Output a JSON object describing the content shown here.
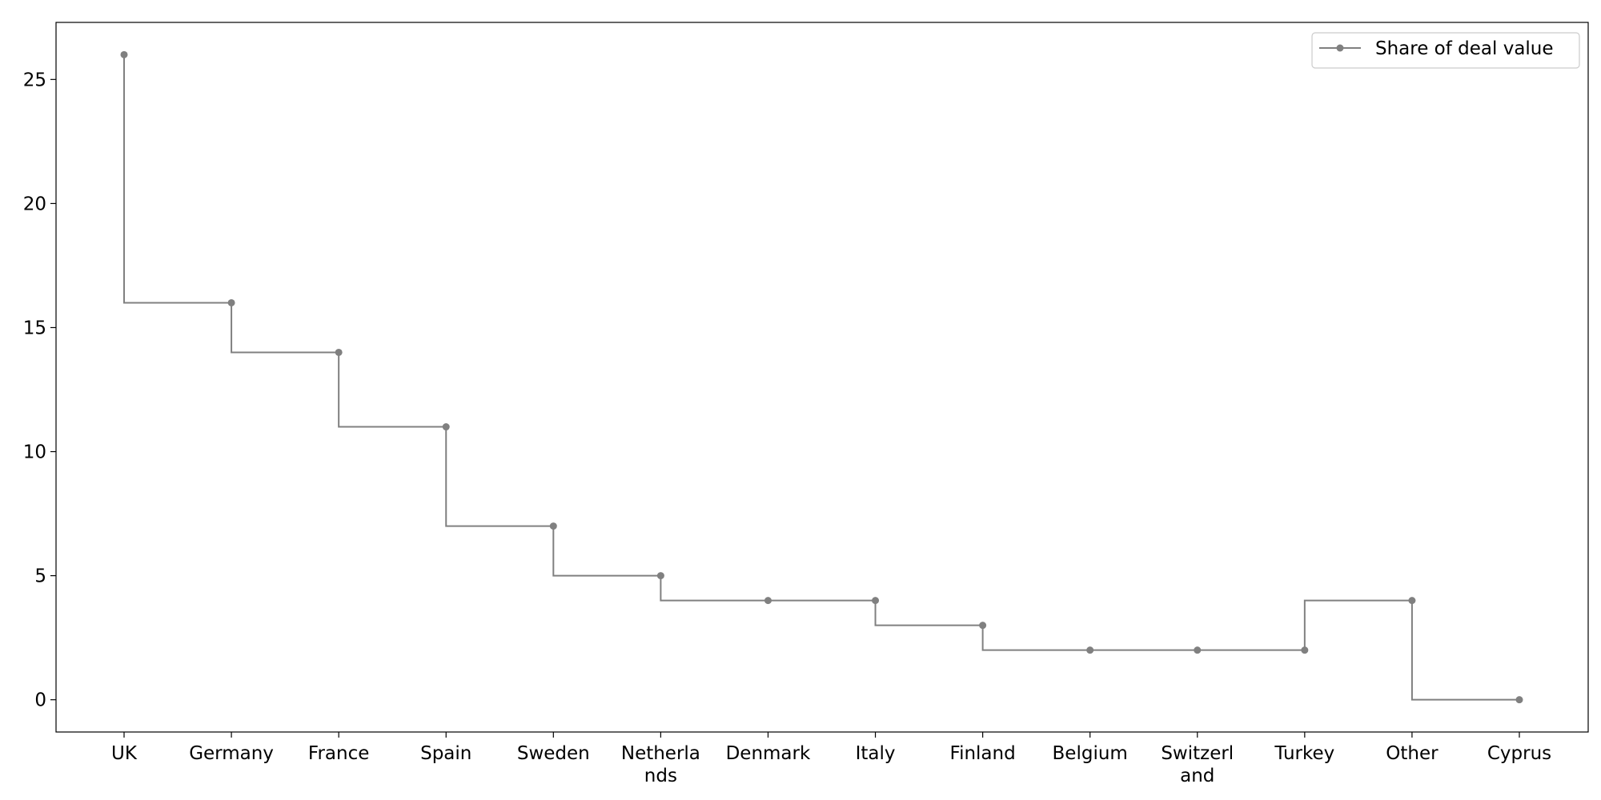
{
  "chart_data": {
    "type": "line",
    "step": "pre",
    "categories": [
      "UK",
      "Germany",
      "France",
      "Spain",
      "Sweden",
      "Netherlands",
      "Denmark",
      "Italy",
      "Finland",
      "Belgium",
      "Switzerland",
      "Turkey",
      "Other",
      "Cyprus"
    ],
    "category_display_lines": [
      [
        "UK"
      ],
      [
        "Germany"
      ],
      [
        "France"
      ],
      [
        "Spain"
      ],
      [
        "Sweden"
      ],
      [
        "Netherla",
        "nds"
      ],
      [
        "Denmark"
      ],
      [
        "Italy"
      ],
      [
        "Finland"
      ],
      [
        "Belgium"
      ],
      [
        "Switzerl",
        "and"
      ],
      [
        "Turkey"
      ],
      [
        "Other"
      ],
      [
        "Cyprus"
      ]
    ],
    "series": [
      {
        "name": "Share of deal value",
        "values": [
          26,
          16,
          14,
          11,
          7,
          5,
          4,
          4,
          3,
          2,
          2,
          2,
          4,
          0
        ],
        "color": "#808080",
        "marker": "circle"
      }
    ],
    "ylim": [
      -1.3,
      27.3
    ],
    "yticks": [
      0,
      5,
      10,
      15,
      20,
      25
    ],
    "title": "",
    "xlabel": "",
    "ylabel": "",
    "grid": false,
    "legend_position": "top-right"
  }
}
